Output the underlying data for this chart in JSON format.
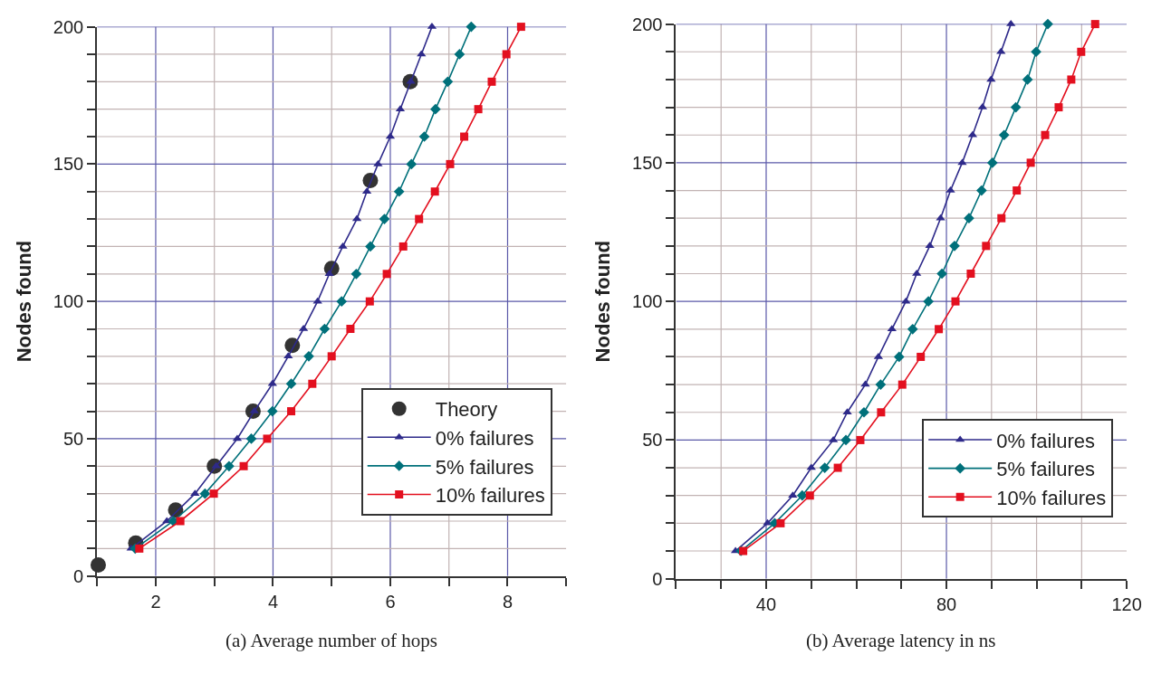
{
  "chart_data": [
    {
      "type": "line",
      "xlabel": "(a) Average number of hops",
      "ylabel": "Nodes found",
      "xlim": [
        1,
        9
      ],
      "xticks": [
        {
          "value": 1,
          "label": null
        },
        2,
        {
          "value": 3,
          "label": null
        },
        4,
        {
          "value": 5,
          "label": null
        },
        6,
        {
          "value": 7,
          "label": null
        },
        8,
        {
          "value": 9,
          "label": null
        }
      ],
      "ylim": [
        0,
        200
      ],
      "yticks": [
        0,
        {
          "value": 10,
          "label": null
        },
        {
          "value": 20,
          "label": null
        },
        {
          "value": 30,
          "label": null
        },
        {
          "value": 40,
          "label": null
        },
        50,
        {
          "value": 60,
          "label": null
        },
        {
          "value": 70,
          "label": null
        },
        {
          "value": 80,
          "label": null
        },
        {
          "value": 90,
          "label": null
        },
        100,
        {
          "value": 110,
          "label": null
        },
        {
          "value": 120,
          "label": null
        },
        {
          "value": 130,
          "label": null
        },
        {
          "value": 140,
          "label": null
        },
        150,
        {
          "value": 160,
          "label": null
        },
        {
          "value": 170,
          "label": null
        },
        {
          "value": 180,
          "label": null
        },
        {
          "value": 190,
          "label": null
        },
        200
      ],
      "grid": true,
      "legend": "bottom right",
      "series": [
        {
          "name": "Theory",
          "type": "scatter",
          "marker": "circle",
          "color": "#333333",
          "x": [
            1.02,
            1.66,
            2.34,
            3.0,
            3.66,
            4.33,
            5.0,
            5.66,
            6.34
          ],
          "values": [
            4,
            12,
            24,
            40,
            60,
            84,
            112,
            144,
            180
          ]
        },
        {
          "name": "0% failures",
          "marker": "triangle",
          "color": "#2e2a8a",
          "x": [
            1.58,
            2.19,
            2.67,
            3.03,
            3.39,
            3.68,
            3.99,
            4.26,
            4.52,
            4.76,
            4.96,
            5.19,
            5.43,
            5.6,
            5.79,
            6.0,
            6.17,
            6.35,
            6.53,
            6.71
          ],
          "values": [
            10,
            20,
            30,
            40,
            50,
            60,
            70,
            80,
            90,
            100,
            110,
            120,
            130,
            140,
            150,
            160,
            170,
            180,
            190,
            200
          ]
        },
        {
          "name": "5% failures",
          "marker": "diamond",
          "color": "#00707a",
          "x": [
            1.65,
            2.3,
            2.84,
            3.25,
            3.63,
            3.99,
            4.31,
            4.61,
            4.88,
            5.17,
            5.42,
            5.66,
            5.9,
            6.15,
            6.36,
            6.58,
            6.77,
            6.98,
            7.18,
            7.38
          ],
          "values": [
            10,
            20,
            30,
            40,
            50,
            60,
            70,
            80,
            90,
            100,
            110,
            120,
            130,
            140,
            150,
            160,
            170,
            180,
            190,
            200
          ]
        },
        {
          "name": "10% failures",
          "marker": "square",
          "color": "#e3101f",
          "x": [
            1.72,
            2.42,
            2.99,
            3.5,
            3.9,
            4.31,
            4.67,
            5.0,
            5.32,
            5.65,
            5.94,
            6.22,
            6.49,
            6.76,
            7.02,
            7.26,
            7.5,
            7.73,
            7.98,
            8.23
          ],
          "values": [
            10,
            20,
            30,
            40,
            50,
            60,
            70,
            80,
            90,
            100,
            110,
            120,
            130,
            140,
            150,
            160,
            170,
            180,
            190,
            200
          ]
        }
      ]
    },
    {
      "type": "line",
      "xlabel": "(b) Average latency in ns",
      "ylabel": "Nodes found",
      "xlim": [
        20,
        120
      ],
      "xticks": [
        {
          "value": 20,
          "label": null
        },
        {
          "value": 30,
          "label": null
        },
        40,
        {
          "value": 50,
          "label": null
        },
        {
          "value": 60,
          "label": null
        },
        {
          "value": 70,
          "label": null
        },
        80,
        {
          "value": 90,
          "label": null
        },
        {
          "value": 100,
          "label": null
        },
        {
          "value": 110,
          "label": null
        },
        120
      ],
      "ylim": [
        0,
        200
      ],
      "yticks": [
        0,
        {
          "value": 10,
          "label": null
        },
        {
          "value": 20,
          "label": null
        },
        {
          "value": 30,
          "label": null
        },
        {
          "value": 40,
          "label": null
        },
        50,
        {
          "value": 60,
          "label": null
        },
        {
          "value": 70,
          "label": null
        },
        {
          "value": 80,
          "label": null
        },
        {
          "value": 90,
          "label": null
        },
        100,
        {
          "value": 110,
          "label": null
        },
        {
          "value": 120,
          "label": null
        },
        {
          "value": 130,
          "label": null
        },
        {
          "value": 140,
          "label": null
        },
        150,
        {
          "value": 160,
          "label": null
        },
        {
          "value": 170,
          "label": null
        },
        {
          "value": 180,
          "label": null
        },
        {
          "value": 190,
          "label": null
        },
        200
      ],
      "grid": true,
      "legend": "bottom right",
      "series": [
        {
          "name": "0% failures",
          "marker": "triangle",
          "color": "#2e2a8a",
          "x": [
            33.2,
            40.3,
            45.9,
            50.0,
            54.9,
            58.0,
            62.0,
            64.9,
            67.9,
            71.0,
            73.4,
            76.3,
            78.7,
            80.9,
            83.5,
            85.8,
            88.0,
            89.9,
            92.1,
            94.3
          ],
          "values": [
            10,
            20,
            30,
            40,
            50,
            60,
            70,
            80,
            90,
            100,
            110,
            120,
            130,
            140,
            150,
            160,
            170,
            180,
            190,
            200
          ]
        },
        {
          "name": "5% failures",
          "marker": "diamond",
          "color": "#00707a",
          "x": [
            34.4,
            41.9,
            48.0,
            53.0,
            57.7,
            61.7,
            65.4,
            69.5,
            72.5,
            76.0,
            79.0,
            81.8,
            85.0,
            87.8,
            90.2,
            92.8,
            95.4,
            98.0,
            99.9,
            102.5
          ],
          "values": [
            10,
            20,
            30,
            40,
            50,
            60,
            70,
            80,
            90,
            100,
            110,
            120,
            130,
            140,
            150,
            160,
            170,
            180,
            190,
            200
          ]
        },
        {
          "name": "10% failures",
          "marker": "square",
          "color": "#e3101f",
          "x": [
            34.9,
            43.2,
            49.7,
            55.9,
            60.9,
            65.5,
            70.2,
            74.3,
            78.3,
            82.0,
            85.4,
            88.8,
            92.2,
            95.6,
            98.7,
            101.9,
            104.9,
            107.7,
            109.9,
            113.0
          ],
          "values": [
            10,
            20,
            30,
            40,
            50,
            60,
            70,
            80,
            90,
            100,
            110,
            120,
            130,
            140,
            150,
            160,
            170,
            180,
            190,
            200
          ]
        }
      ]
    }
  ]
}
